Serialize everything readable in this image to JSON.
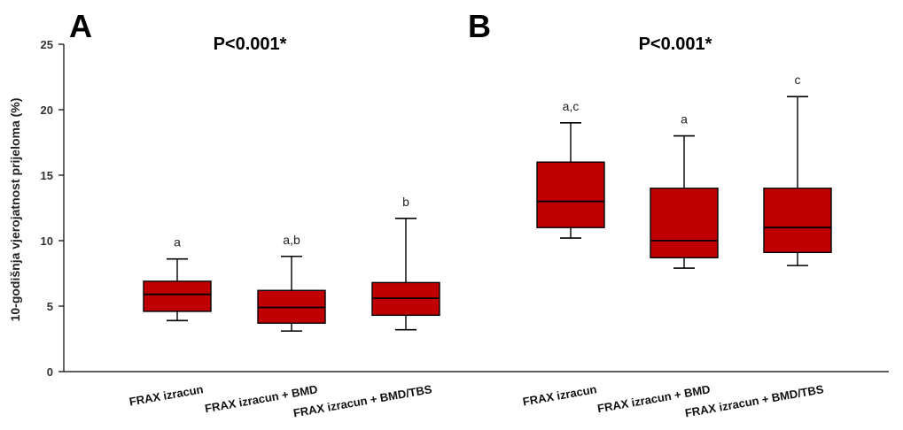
{
  "chart_data": {
    "type": "box",
    "ylabel": "10-godišnja vjerojatnost prijeloma (%)",
    "ylim": [
      0,
      25
    ],
    "yticks": [
      0,
      5,
      10,
      15,
      20,
      25
    ],
    "box_color": "#c00000",
    "panels": [
      {
        "panel_label": "A",
        "pvalue": "P<0.001*",
        "boxes": [
          {
            "category": "FRAX izracun",
            "min": 3.9,
            "q1": 4.6,
            "median": 5.9,
            "q3": 6.9,
            "max": 8.6,
            "sig": "a"
          },
          {
            "category": "FRAX izracun + BMD",
            "min": 3.1,
            "q1": 3.7,
            "median": 4.9,
            "q3": 6.2,
            "max": 8.8,
            "sig": "a,b"
          },
          {
            "category": "FRAX izracun + BMD/TBS",
            "min": 3.2,
            "q1": 4.3,
            "median": 5.6,
            "q3": 6.8,
            "max": 11.7,
            "sig": "b"
          }
        ]
      },
      {
        "panel_label": "B",
        "pvalue": "P<0.001*",
        "boxes": [
          {
            "category": "FRAX izracun",
            "min": 10.2,
            "q1": 11.0,
            "median": 13.0,
            "q3": 16.0,
            "max": 19.0,
            "sig": "a,c"
          },
          {
            "category": "FRAX izracun + BMD",
            "min": 7.9,
            "q1": 8.7,
            "median": 10.0,
            "q3": 14.0,
            "max": 18.0,
            "sig": "a"
          },
          {
            "category": "FRAX izracun + BMD/TBS",
            "min": 8.1,
            "q1": 9.1,
            "median": 11.0,
            "q3": 14.0,
            "max": 21.0,
            "sig": "c"
          }
        ]
      }
    ]
  }
}
